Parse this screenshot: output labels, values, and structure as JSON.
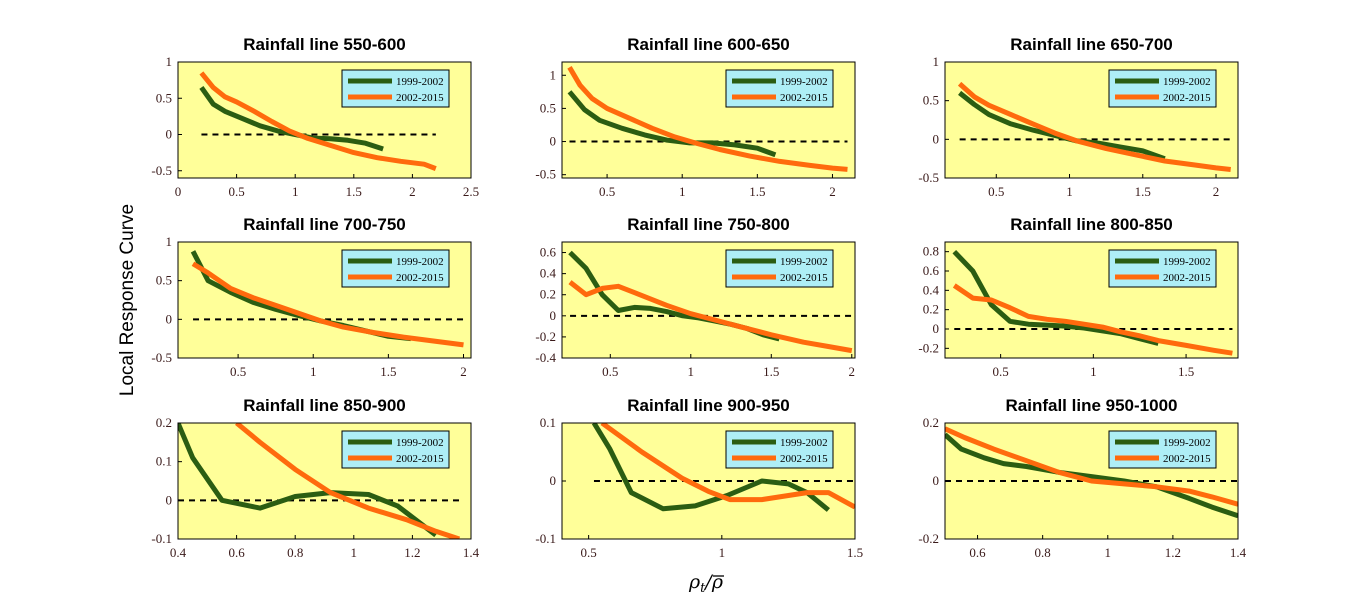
{
  "figure": {
    "ylabel": "Local Response Curve",
    "xlabel": "ρt/ρ̄",
    "colors": {
      "panel_bg": "#ffff99",
      "legend_bg": "#aeeef6",
      "series_1999": "#2b5d12",
      "series_2002": "#ff6a0d",
      "baseline": "#000000"
    }
  },
  "chart_data": [
    {
      "type": "line",
      "title": "Rainfall line 550-600",
      "xlim": [
        0,
        2.5
      ],
      "ylim": [
        -0.6,
        1
      ],
      "xticks": [
        0,
        0.5,
        1,
        1.5,
        2,
        2.5
      ],
      "xtick_labels": [
        "0",
        "0.5",
        "1",
        "1.5",
        "2",
        "2.5"
      ],
      "yticks": [
        -0.5,
        0,
        0.5,
        1
      ],
      "ytick_labels": [
        "-0.5",
        "0",
        "0.5",
        "1"
      ],
      "baseline": 0,
      "legend": "top-right",
      "series": [
        {
          "name": "1999-2002",
          "x": [
            0.2,
            0.3,
            0.4,
            0.55,
            0.7,
            0.85,
            1.0,
            1.15,
            1.3,
            1.45,
            1.6,
            1.75
          ],
          "y": [
            0.65,
            0.42,
            0.32,
            0.22,
            0.12,
            0.05,
            0.0,
            -0.05,
            -0.06,
            -0.08,
            -0.12,
            -0.2
          ]
        },
        {
          "name": "2002-2015",
          "x": [
            0.2,
            0.3,
            0.4,
            0.5,
            0.65,
            0.8,
            0.95,
            1.1,
            1.3,
            1.5,
            1.7,
            1.9,
            2.1,
            2.2
          ],
          "y": [
            0.85,
            0.65,
            0.52,
            0.45,
            0.32,
            0.18,
            0.05,
            -0.05,
            -0.15,
            -0.25,
            -0.32,
            -0.37,
            -0.41,
            -0.47
          ]
        }
      ]
    },
    {
      "type": "line",
      "title": "Rainfall line 600-650",
      "xlim": [
        0.2,
        2.15
      ],
      "ylim": [
        -0.55,
        1.2
      ],
      "xticks": [
        0.5,
        1,
        1.5,
        2
      ],
      "xtick_labels": [
        "0.5",
        "1",
        "1.5",
        "2"
      ],
      "yticks": [
        -0.5,
        0,
        0.5,
        1
      ],
      "ytick_labels": [
        "-0.5",
        "0",
        "0.5",
        "1"
      ],
      "baseline": 0,
      "legend": "top-right",
      "series": [
        {
          "name": "1999-2002",
          "x": [
            0.25,
            0.35,
            0.45,
            0.6,
            0.75,
            0.9,
            1.05,
            1.2,
            1.35,
            1.5,
            1.62
          ],
          "y": [
            0.75,
            0.48,
            0.32,
            0.2,
            0.1,
            0.02,
            -0.02,
            -0.02,
            -0.05,
            -0.1,
            -0.2
          ]
        },
        {
          "name": "2002-2015",
          "x": [
            0.25,
            0.32,
            0.4,
            0.5,
            0.65,
            0.8,
            0.95,
            1.1,
            1.25,
            1.45,
            1.65,
            1.85,
            2.0,
            2.1
          ],
          "y": [
            1.12,
            0.85,
            0.65,
            0.5,
            0.35,
            0.2,
            0.07,
            -0.03,
            -0.12,
            -0.22,
            -0.3,
            -0.36,
            -0.4,
            -0.42
          ]
        }
      ]
    },
    {
      "type": "line",
      "title": "Rainfall line 650-700",
      "xlim": [
        0.15,
        2.15
      ],
      "ylim": [
        -0.5,
        1
      ],
      "xticks": [
        0.5,
        1,
        1.5,
        2
      ],
      "xtick_labels": [
        "0.5",
        "1",
        "1.5",
        "2"
      ],
      "yticks": [
        -0.5,
        0,
        0.5,
        1
      ],
      "ytick_labels": [
        "-0.5",
        "0",
        "0.5",
        "1"
      ],
      "baseline": 0,
      "legend": "top-right",
      "series": [
        {
          "name": "1999-2002",
          "x": [
            0.25,
            0.35,
            0.45,
            0.6,
            0.75,
            0.9,
            1.05,
            1.2,
            1.35,
            1.5,
            1.65
          ],
          "y": [
            0.6,
            0.45,
            0.32,
            0.2,
            0.12,
            0.05,
            -0.02,
            -0.05,
            -0.1,
            -0.15,
            -0.25
          ]
        },
        {
          "name": "2002-2015",
          "x": [
            0.25,
            0.35,
            0.45,
            0.6,
            0.75,
            0.9,
            1.05,
            1.25,
            1.45,
            1.65,
            1.85,
            2.0,
            2.1
          ],
          "y": [
            0.72,
            0.55,
            0.44,
            0.32,
            0.2,
            0.08,
            -0.02,
            -0.12,
            -0.2,
            -0.28,
            -0.33,
            -0.37,
            -0.39
          ]
        }
      ]
    },
    {
      "type": "line",
      "title": "Rainfall line 700-750",
      "xlim": [
        0.1,
        2.05
      ],
      "ylim": [
        -0.5,
        1
      ],
      "xticks": [
        0.5,
        1,
        1.5,
        2
      ],
      "xtick_labels": [
        "0.5",
        "1",
        "1.5",
        "2"
      ],
      "yticks": [
        -0.5,
        0,
        0.5,
        1
      ],
      "ytick_labels": [
        "-0.5",
        "0",
        "0.5",
        "1"
      ],
      "baseline": 0,
      "legend": "top-right",
      "series": [
        {
          "name": "1999-2002",
          "x": [
            0.2,
            0.3,
            0.45,
            0.6,
            0.75,
            0.9,
            1.05,
            1.2,
            1.35,
            1.5,
            1.65
          ],
          "y": [
            0.88,
            0.5,
            0.35,
            0.22,
            0.13,
            0.05,
            -0.02,
            -0.08,
            -0.15,
            -0.22,
            -0.25
          ]
        },
        {
          "name": "2002-2015",
          "x": [
            0.2,
            0.3,
            0.45,
            0.6,
            0.75,
            0.9,
            1.05,
            1.2,
            1.4,
            1.6,
            1.8,
            2.0
          ],
          "y": [
            0.72,
            0.6,
            0.4,
            0.28,
            0.18,
            0.08,
            -0.02,
            -0.1,
            -0.17,
            -0.23,
            -0.28,
            -0.33
          ]
        }
      ]
    },
    {
      "type": "line",
      "title": "Rainfall line 750-800",
      "xlim": [
        0.2,
        2.02
      ],
      "ylim": [
        -0.4,
        0.7
      ],
      "xticks": [
        0.5,
        1,
        1.5,
        2
      ],
      "xtick_labels": [
        "0.5",
        "1",
        "1.5",
        "2"
      ],
      "yticks": [
        -0.4,
        -0.2,
        0,
        0.2,
        0.4,
        0.6
      ],
      "ytick_labels": [
        "-0.4",
        "-0.2",
        "0",
        "0.2",
        "0.4",
        "0.6"
      ],
      "baseline": 0,
      "legend": "top-right",
      "series": [
        {
          "name": "1999-2002",
          "x": [
            0.25,
            0.35,
            0.45,
            0.55,
            0.65,
            0.75,
            0.85,
            0.95,
            1.05,
            1.15,
            1.25,
            1.35,
            1.45,
            1.55
          ],
          "y": [
            0.6,
            0.45,
            0.2,
            0.05,
            0.08,
            0.07,
            0.04,
            0.0,
            -0.02,
            -0.05,
            -0.08,
            -0.12,
            -0.18,
            -0.22
          ]
        },
        {
          "name": "2002-2015",
          "x": [
            0.25,
            0.35,
            0.45,
            0.55,
            0.65,
            0.75,
            0.85,
            1.0,
            1.15,
            1.3,
            1.5,
            1.7,
            1.85,
            2.0
          ],
          "y": [
            0.32,
            0.2,
            0.26,
            0.28,
            0.22,
            0.16,
            0.1,
            0.02,
            -0.04,
            -0.1,
            -0.18,
            -0.25,
            -0.29,
            -0.33
          ]
        }
      ]
    },
    {
      "type": "line",
      "title": "Rainfall line 800-850",
      "xlim": [
        0.2,
        1.78
      ],
      "ylim": [
        -0.3,
        0.9
      ],
      "xticks": [
        0.5,
        1,
        1.5
      ],
      "xtick_labels": [
        "0.5",
        "1",
        "1.5"
      ],
      "yticks": [
        -0.2,
        0,
        0.2,
        0.4,
        0.6,
        0.8
      ],
      "ytick_labels": [
        "-0.2",
        "0",
        "0.2",
        "0.4",
        "0.6",
        "0.8"
      ],
      "baseline": 0,
      "legend": "top-right",
      "series": [
        {
          "name": "1999-2002",
          "x": [
            0.25,
            0.35,
            0.45,
            0.55,
            0.65,
            0.75,
            0.85,
            0.95,
            1.05,
            1.15,
            1.25,
            1.35
          ],
          "y": [
            0.8,
            0.6,
            0.25,
            0.08,
            0.05,
            0.04,
            0.03,
            0.01,
            -0.02,
            -0.05,
            -0.1,
            -0.15
          ]
        },
        {
          "name": "2002-2015",
          "x": [
            0.25,
            0.35,
            0.45,
            0.55,
            0.65,
            0.75,
            0.85,
            0.95,
            1.05,
            1.15,
            1.25,
            1.35,
            1.5,
            1.65,
            1.75
          ],
          "y": [
            0.45,
            0.32,
            0.3,
            0.22,
            0.13,
            0.1,
            0.08,
            0.05,
            0.02,
            -0.03,
            -0.07,
            -0.12,
            -0.17,
            -0.22,
            -0.25
          ]
        }
      ]
    },
    {
      "type": "line",
      "title": "Rainfall line 850-900",
      "xlim": [
        0.4,
        1.4
      ],
      "ylim": [
        -0.1,
        0.2
      ],
      "xticks": [
        0.4,
        0.6,
        0.8,
        1,
        1.2,
        1.4
      ],
      "xtick_labels": [
        "0.4",
        "0.6",
        "0.8",
        "1",
        "1.2",
        "1.4"
      ],
      "yticks": [
        -0.1,
        0,
        0.1,
        0.2
      ],
      "ytick_labels": [
        "-0.1",
        "0",
        "0.1",
        "0.2"
      ],
      "baseline": 0,
      "legend": "top-right",
      "series": [
        {
          "name": "1999-2002",
          "x": [
            0.4,
            0.45,
            0.55,
            0.68,
            0.8,
            0.92,
            1.05,
            1.15,
            1.28
          ],
          "y": [
            0.2,
            0.11,
            0.0,
            -0.02,
            0.01,
            0.02,
            0.015,
            -0.015,
            -0.09
          ]
        },
        {
          "name": "2002-2015",
          "x": [
            0.6,
            0.68,
            0.8,
            0.92,
            1.05,
            1.18,
            1.28,
            1.36
          ],
          "y": [
            0.2,
            0.15,
            0.08,
            0.02,
            -0.02,
            -0.05,
            -0.08,
            -0.1
          ]
        }
      ]
    },
    {
      "type": "line",
      "title": "Rainfall line 900-950",
      "xlim": [
        0.4,
        1.5
      ],
      "ylim": [
        -0.1,
        0.1
      ],
      "xticks": [
        0.5,
        1,
        1.5
      ],
      "xtick_labels": [
        "0.5",
        "1",
        "1.5"
      ],
      "yticks": [
        -0.1,
        0,
        0.1
      ],
      "ytick_labels": [
        "-0.1",
        "0",
        "0.1"
      ],
      "baseline": 0,
      "legend": "top-right",
      "series": [
        {
          "name": "1999-2002",
          "x": [
            0.52,
            0.58,
            0.66,
            0.78,
            0.9,
            1.02,
            1.15,
            1.25,
            1.32,
            1.4
          ],
          "y": [
            0.1,
            0.055,
            -0.02,
            -0.048,
            -0.043,
            -0.025,
            0.0,
            -0.005,
            -0.02,
            -0.05
          ]
        },
        {
          "name": "2002-2015",
          "x": [
            0.55,
            0.7,
            0.85,
            0.95,
            1.03,
            1.15,
            1.25,
            1.32,
            1.4,
            1.5
          ],
          "y": [
            0.1,
            0.05,
            0.005,
            -0.018,
            -0.032,
            -0.032,
            -0.025,
            -0.02,
            -0.02,
            -0.045
          ]
        }
      ]
    },
    {
      "type": "line",
      "title": "Rainfall line 950-1000",
      "xlim": [
        0.5,
        1.4
      ],
      "ylim": [
        -0.2,
        0.2
      ],
      "xticks": [
        0.6,
        0.8,
        1,
        1.2,
        1.4
      ],
      "xtick_labels": [
        "0.6",
        "0.8",
        "1",
        "1.2",
        "1.4"
      ],
      "yticks": [
        -0.2,
        0,
        0.2
      ],
      "ytick_labels": [
        "-0.2",
        "0",
        "0.2"
      ],
      "baseline": 0,
      "legend": "top-right",
      "series": [
        {
          "name": "1999-2002",
          "x": [
            0.5,
            0.55,
            0.62,
            0.68,
            0.75,
            0.85,
            0.95,
            1.05,
            1.15,
            1.25,
            1.32,
            1.4
          ],
          "y": [
            0.16,
            0.11,
            0.08,
            0.06,
            0.05,
            0.03,
            0.015,
            0.0,
            -0.02,
            -0.06,
            -0.09,
            -0.12
          ]
        },
        {
          "name": "2002-2015",
          "x": [
            0.5,
            0.56,
            0.65,
            0.75,
            0.85,
            0.95,
            1.05,
            1.15,
            1.25,
            1.32,
            1.4
          ],
          "y": [
            0.18,
            0.15,
            0.11,
            0.07,
            0.03,
            0.0,
            -0.01,
            -0.02,
            -0.035,
            -0.055,
            -0.08
          ]
        }
      ]
    }
  ]
}
